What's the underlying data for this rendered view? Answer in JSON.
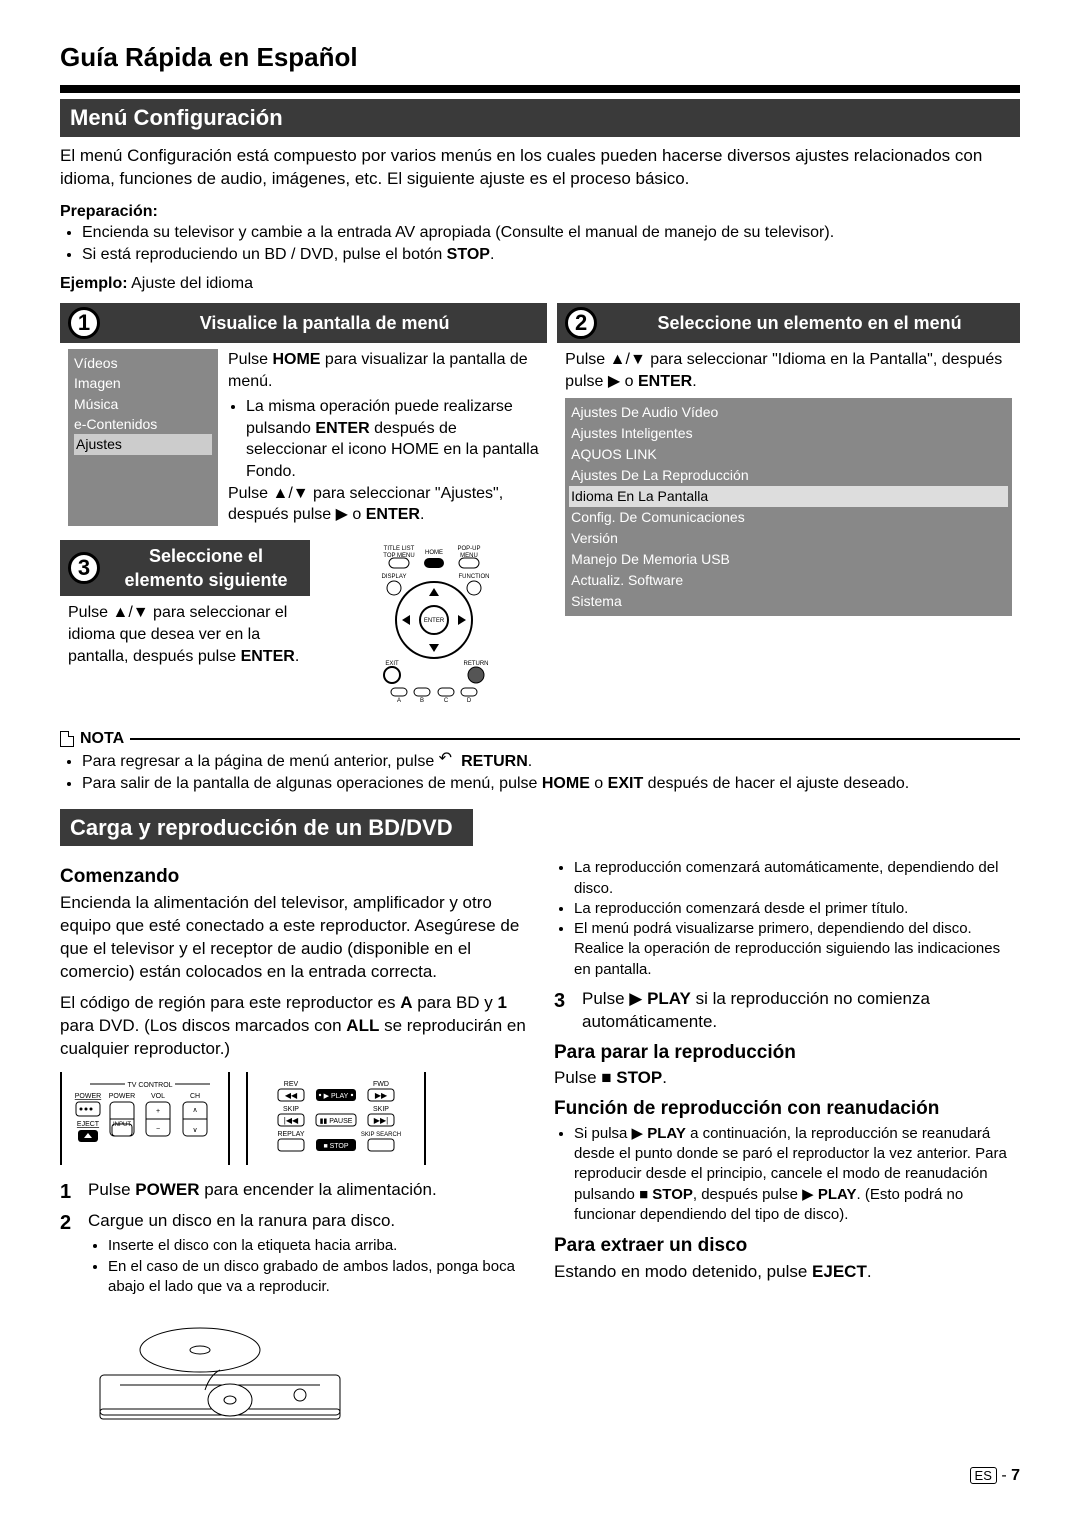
{
  "page_title": "Guía Rápida en Español",
  "section1_title": "Menú Configuración",
  "intro": "El menú Configuración está compuesto por varios menús en los cuales pueden hacerse diversos ajustes relacionados con idioma, funciones de audio, imágenes, etc. El siguiente ajuste es el proceso básico.",
  "prep_label": "Preparación:",
  "prep_items": [
    "Encienda su televisor y cambie a la entrada AV apropiada (Consulte el manual de manejo de su televisor).",
    "Si está reproduciendo un BD / DVD, pulse el botón STOP."
  ],
  "ejemplo_label": "Ejemplo:",
  "ejemplo_text": " Ajuste del idioma",
  "step1": {
    "num": "1",
    "title": "Visualice la pantalla de menú",
    "menu_items": [
      "Vídeos",
      "Imagen",
      "Música",
      "e-Contenidos",
      "Ajustes"
    ],
    "line1a": "Pulse ",
    "line1b": "HOME",
    "line1c": " para visualizar la pantalla de menú.",
    "bullet": "La misma operación puede realizarse pulsando ENTER después de seleccionar el icono HOME en la pantalla Fondo.",
    "line2": "Pulse ▲/▼ para seleccionar \"Ajustes\", después pulse ▶ o ENTER."
  },
  "step2": {
    "num": "2",
    "title": "Seleccione un elemento en el menú",
    "line1": "Pulse ▲/▼ para seleccionar \"Idioma en la Pantalla\", después pulse ▶ o ENTER.",
    "settings": [
      "Ajustes De Audio Vídeo",
      "Ajustes Inteligentes",
      "AQUOS LINK",
      "Ajustes De La Reproducción",
      "Idioma En La Pantalla",
      "Config. De Comunicaciones",
      "Versión",
      "Manejo De Memoria USB",
      "Actualiz. Software",
      "Sistema"
    ],
    "selected_index": 4
  },
  "step3": {
    "num": "3",
    "title": "Seleccione el elemento siguiente",
    "text": "Pulse ▲/▼ para seleccionar el idioma que desea ver en la pantalla, después pulse ENTER."
  },
  "remote_labels": {
    "title_list": "TITLE LIST",
    "top_menu": "TOP MENU",
    "home": "HOME",
    "popup": "POP-UP MENU",
    "display": "DISPLAY",
    "function": "FUNCTION",
    "enter": "ENTER",
    "exit": "EXIT",
    "return": "RETURN",
    "a": "A",
    "b": "B",
    "c": "C",
    "d": "D"
  },
  "nota_label": "NOTA",
  "nota_items": [
    "Para regresar a la página de menú anterior, pulse  RETURN.",
    "Para salir de la pantalla de algunas operaciones de menú, pulse HOME o EXIT después de hacer el ajuste deseado."
  ],
  "section2_title": "Carga y reproducción de un BD/DVD",
  "comenzando": {
    "h": "Comenzando",
    "p1": "Encienda la alimentación del televisor, amplificador y otro equipo que esté conectado a este reproductor. Asegúrese de que el televisor y el receptor de audio (disponible en el comercio) están colocados en la entrada correcta.",
    "p2": "El código de región para este reproductor es A para BD y 1 para DVD. (Los discos marcados con ALL se reproducirán en cualquier reproductor.)"
  },
  "tv_control": {
    "header": "TV CONTROL",
    "power": "POWER",
    "power2": "POWER",
    "vol": "VOL",
    "ch": "CH",
    "eject": "EJECT",
    "input": "INPUT"
  },
  "play_control": {
    "rev": "REV",
    "fwd": "FWD",
    "skip": "SKIP",
    "skip2": "SKIP",
    "replay": "REPLAY",
    "skipsearch": "SKIP SEARCH",
    "play": "PLAY",
    "pause": "PAUSE",
    "stop": "STOP"
  },
  "steps_left": [
    {
      "n": "1",
      "text": "Pulse POWER para encender la alimentación."
    },
    {
      "n": "2",
      "text": "Cargue un disco en la ranura para disco.",
      "sub": [
        "Inserte el disco con la etiqueta hacia arriba.",
        "En el caso de un disco grabado de ambos lados, ponga boca abajo el lado que va a reproducir."
      ]
    }
  ],
  "right_bullets": [
    "La reproducción comenzará automáticamente, dependiendo del disco.",
    "La reproducción comenzará desde el primer título.",
    "El menú podrá visualizarse primero, dependiendo del disco. Realice la operación de reproducción siguiendo las indicaciones en pantalla."
  ],
  "step_right_3": {
    "n": "3",
    "text": "Pulse ▶ PLAY si la reproducción no comienza automáticamente."
  },
  "stop_h": "Para parar la reproducción",
  "stop_text": "Pulse ■ STOP.",
  "resume_h": "Función de reproducción con reanudación",
  "resume_bullet": "Si pulsa ▶ PLAY a continuación, la reproducción se reanudará desde el punto donde se paró el reproductor la vez anterior. Para reproducir desde el principio, cancele el modo de reanudación pulsando ■ STOP, después pulse ▶ PLAY. (Esto podrá no funcionar dependiendo del tipo de disco).",
  "eject_h": "Para extraer un disco",
  "eject_text": "Estando en modo detenido, pulse EJECT.",
  "footer": {
    "es": "ES",
    "page": "7"
  }
}
